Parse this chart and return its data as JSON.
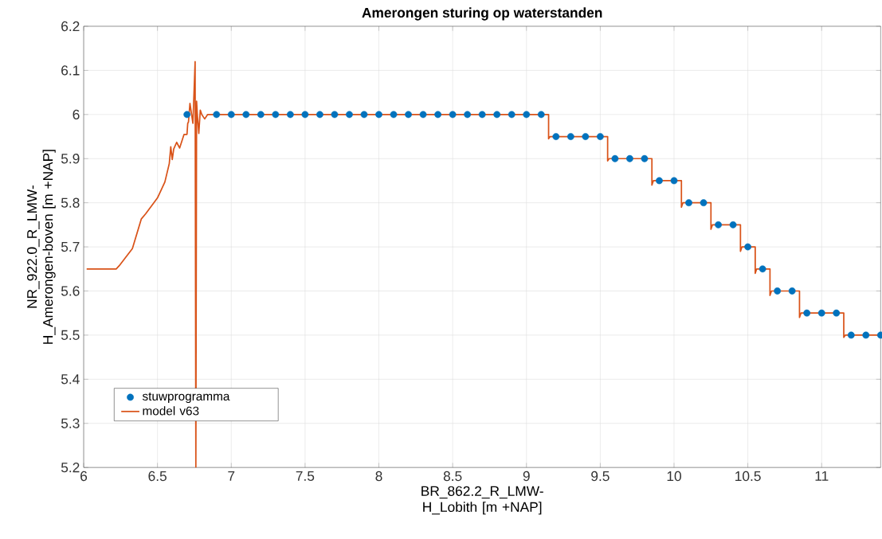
{
  "chart_data": {
    "type": "line",
    "title": "Amerongen sturing op waterstanden",
    "xlabel": "BR_862.2_R_LMW-H_Lobith [m +NAP]",
    "ylabel": "NR_922.0_R_LMW-H_Amerongen-boven [m +NAP]",
    "xlim": [
      6,
      11.4
    ],
    "ylim": [
      5.2,
      6.2
    ],
    "xticks": [
      6,
      6.5,
      7,
      7.5,
      8,
      8.5,
      9,
      9.5,
      10,
      10.5,
      11
    ],
    "yticks": [
      5.2,
      5.3,
      5.4,
      5.5,
      5.6,
      5.7,
      5.8,
      5.9,
      6,
      6.1,
      6.2
    ],
    "grid": true,
    "legend": "bottom left",
    "series": [
      {
        "name": "stuwprogramma",
        "type": "scatter",
        "marker": "circle",
        "color": "#0072bd",
        "x": [
          6.7,
          6.9,
          7.0,
          7.1,
          7.2,
          7.3,
          7.4,
          7.5,
          7.6,
          7.7,
          7.8,
          7.9,
          8.0,
          8.1,
          8.2,
          8.3,
          8.4,
          8.5,
          8.6,
          8.7,
          8.8,
          8.9,
          9.0,
          9.1,
          9.2,
          9.3,
          9.4,
          9.5,
          9.6,
          9.7,
          9.8,
          9.9,
          10.0,
          10.1,
          10.2,
          10.3,
          10.4,
          10.5,
          10.6,
          10.7,
          10.8,
          10.9,
          11.0,
          11.1,
          11.2,
          11.3,
          11.4
        ],
        "values": [
          6,
          6,
          6,
          6,
          6,
          6,
          6,
          6,
          6,
          6,
          6,
          6,
          6,
          6,
          6,
          6,
          6,
          6,
          6,
          6,
          6,
          6,
          6,
          6,
          5.95,
          5.95,
          5.95,
          5.95,
          5.9,
          5.9,
          5.9,
          5.85,
          5.85,
          5.8,
          5.8,
          5.75,
          5.75,
          5.7,
          5.65,
          5.6,
          5.6,
          5.55,
          5.55,
          5.55,
          5.5,
          5.5,
          5.5
        ]
      },
      {
        "name": "model v63",
        "marker": "none",
        "line_style": "solid",
        "color": "#d95319",
        "x": [
          6.02,
          6.22,
          6.24,
          6.33,
          6.39,
          6.42,
          6.5,
          6.55,
          6.58,
          6.59,
          6.6,
          6.61,
          6.63,
          6.65,
          6.68,
          6.7,
          6.705,
          6.71,
          6.72,
          6.74,
          6.755,
          6.76,
          6.765,
          6.77,
          6.78,
          6.79,
          6.8,
          6.82,
          6.84,
          9.15,
          9.15,
          9.16,
          9.55,
          9.55,
          9.56,
          9.85,
          9.85,
          9.86,
          10.05,
          10.05,
          10.06,
          10.25,
          10.25,
          10.26,
          10.45,
          10.45,
          10.46,
          10.55,
          10.55,
          10.56,
          10.65,
          10.65,
          10.66,
          10.85,
          10.85,
          10.86,
          11.15,
          11.15,
          11.16,
          11.4
        ],
        "values": [
          5.65,
          5.65,
          5.657,
          5.696,
          5.763,
          5.775,
          5.811,
          5.847,
          5.889,
          5.927,
          5.898,
          5.922,
          5.937,
          5.924,
          5.955,
          5.955,
          5.98,
          5.983,
          6.025,
          5.98,
          6.12,
          5.2,
          6.03,
          6.0,
          5.957,
          6.01,
          6.0,
          5.99,
          6.0,
          6.0,
          5.945,
          5.95,
          5.95,
          5.895,
          5.9,
          5.9,
          5.84,
          5.85,
          5.85,
          5.79,
          5.8,
          5.8,
          5.74,
          5.75,
          5.75,
          5.69,
          5.7,
          5.7,
          5.64,
          5.65,
          5.65,
          5.59,
          5.6,
          5.6,
          5.54,
          5.55,
          5.55,
          5.495,
          5.5,
          5.5
        ]
      }
    ]
  }
}
